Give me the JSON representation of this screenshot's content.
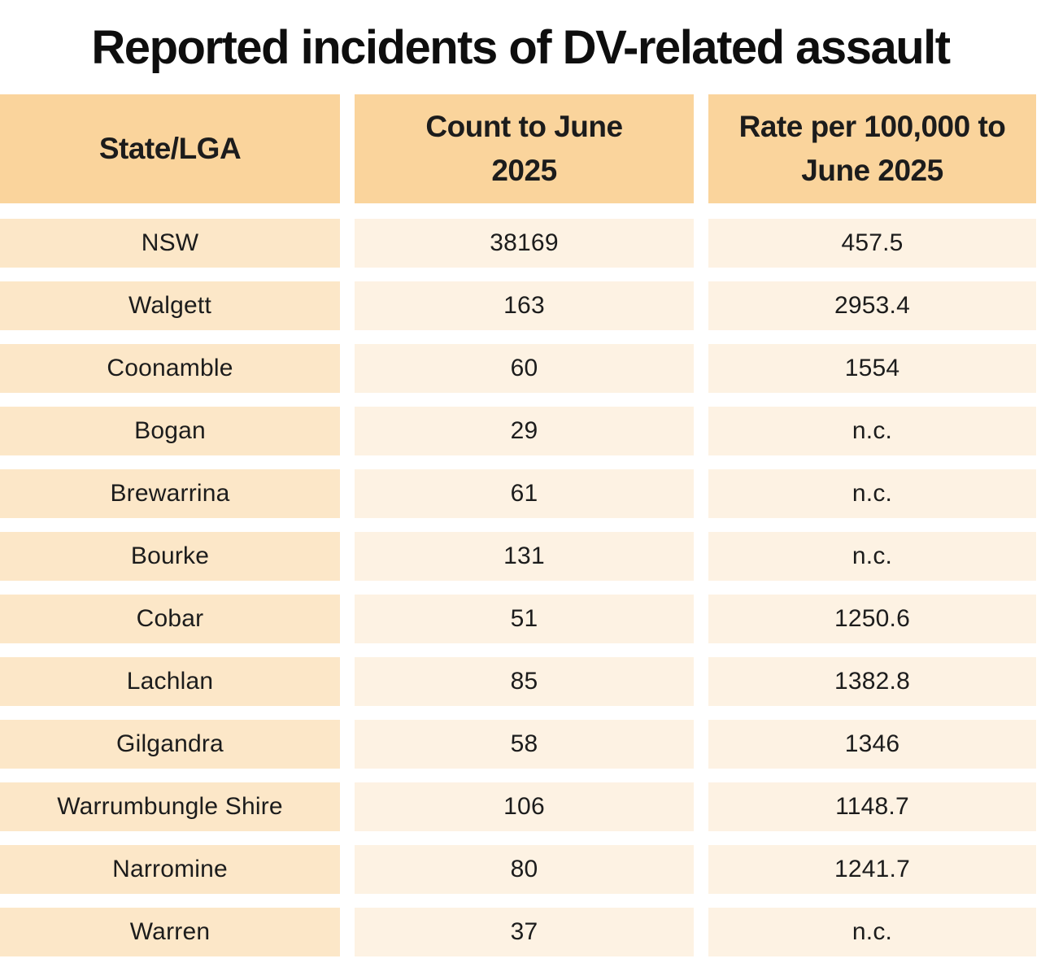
{
  "chart_data": {
    "type": "table",
    "title": "Reported incidents of DV-related assault",
    "columns": [
      "State/LGA",
      "Count to June 2025",
      "Rate per 100,000 to June 2025"
    ],
    "rows": [
      [
        "NSW",
        "38169",
        "457.5"
      ],
      [
        "Walgett",
        "163",
        "2953.4"
      ],
      [
        "Coonamble",
        "60",
        "1554"
      ],
      [
        "Bogan",
        "29",
        "n.c."
      ],
      [
        "Brewarrina",
        "61",
        "n.c."
      ],
      [
        "Bourke",
        "131",
        "n.c."
      ],
      [
        "Cobar",
        "51",
        "1250.6"
      ],
      [
        "Lachlan",
        "85",
        "1382.8"
      ],
      [
        "Gilgandra",
        "58",
        "1346"
      ],
      [
        "Warrumbungle Shire",
        "106",
        "1148.7"
      ],
      [
        "Narromine",
        "80",
        "1241.7"
      ],
      [
        "Warren",
        "37",
        "n.c."
      ]
    ],
    "layout_hints": {
      "header_position": "top",
      "gridlines": "off",
      "cell_separation": "white-gutters"
    }
  },
  "colors": {
    "background": "#FFFFFF",
    "title_text": "#0E0E0E",
    "text": "#1C1C1C",
    "header_bg": "#FAD49C",
    "row_label_bg": "#FCE7C8",
    "row_value_bg": "#FDF2E3"
  }
}
